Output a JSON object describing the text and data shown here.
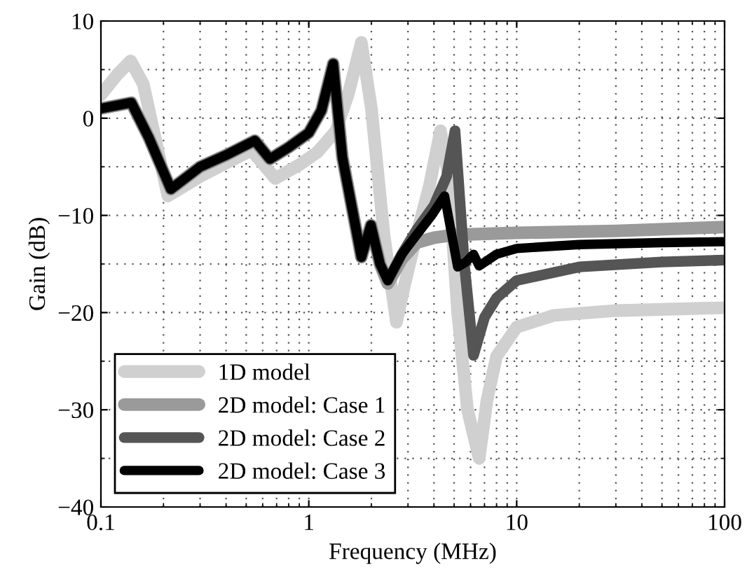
{
  "chart_data": {
    "type": "line",
    "xlabel": "Frequency (MHz)",
    "ylabel": "Gain (dB)",
    "log": "x",
    "xlim": [
      0.1,
      100
    ],
    "xticks": [
      0.1,
      1,
      10,
      100
    ],
    "ylim": [
      -40,
      10
    ],
    "yticks": [
      -40,
      -30,
      -20,
      -10,
      0,
      10
    ],
    "grid": true,
    "legend": "bottom left",
    "marker": "none",
    "line_style": "solid",
    "series": [
      {
        "name": "1D model",
        "color": "#d0d0d0",
        "x": [
          0.1,
          0.12,
          0.139,
          0.16,
          0.21,
          0.3,
          0.4,
          0.53,
          0.69,
          0.9,
          1.1,
          1.35,
          1.55,
          1.79,
          2.0,
          2.3,
          2.64,
          2.9,
          3.3,
          3.8,
          4.3,
          4.7,
          5.2,
          5.8,
          6.6,
          7.2,
          8,
          10,
          15,
          30,
          100
        ],
        "values": [
          2.4,
          4.5,
          5.9,
          3.5,
          -8,
          -6,
          -4.6,
          -3.3,
          -6.2,
          -4.8,
          -3.5,
          -1.3,
          2.5,
          7.8,
          1,
          -12,
          -21,
          -17,
          -12,
          -7,
          -1.3,
          -6,
          -20,
          -30,
          -35,
          -29,
          -24.5,
          -21.5,
          -20.3,
          -19.8,
          -19.5
        ]
      },
      {
        "name": "2D model: Case 1",
        "color": "#9a9a9a",
        "x": [
          0.1,
          0.14,
          0.17,
          0.217,
          0.3,
          0.4,
          0.55,
          0.65,
          0.8,
          1.0,
          1.15,
          1.31,
          1.45,
          1.79,
          1.99,
          2.2,
          2.4,
          2.8,
          3.3,
          4,
          5,
          10,
          30,
          100
        ],
        "values": [
          1,
          1.6,
          -2,
          -7.3,
          -5,
          -3.8,
          -2.3,
          -4.2,
          -3,
          -1.5,
          0.8,
          5.6,
          -4,
          -14.3,
          -11,
          -15,
          -17,
          -14.5,
          -12.8,
          -12.3,
          -12,
          -11.8,
          -11.6,
          -11.2
        ]
      },
      {
        "name": "2D model: Case 2",
        "color": "#555555",
        "x": [
          0.1,
          0.14,
          0.17,
          0.217,
          0.3,
          0.4,
          0.55,
          0.65,
          0.8,
          1.0,
          1.15,
          1.31,
          1.45,
          1.79,
          1.99,
          2.2,
          2.4,
          2.8,
          3.3,
          4,
          4.6,
          5.05,
          5.6,
          6.2,
          7,
          8,
          10,
          20,
          50,
          100
        ],
        "values": [
          1,
          1.6,
          -2,
          -7.3,
          -5,
          -3.8,
          -2.3,
          -4.2,
          -3,
          -1.5,
          0.8,
          5.6,
          -4,
          -14.3,
          -11,
          -15,
          -16.7,
          -14,
          -11.5,
          -9,
          -6,
          -1.3,
          -15,
          -24.4,
          -20.5,
          -18.5,
          -16.7,
          -15.3,
          -14.8,
          -14.6
        ]
      },
      {
        "name": "2D model: Case 3",
        "color": "#000000",
        "x": [
          0.1,
          0.14,
          0.17,
          0.217,
          0.3,
          0.4,
          0.55,
          0.65,
          0.8,
          1.0,
          1.15,
          1.31,
          1.45,
          1.79,
          1.99,
          2.2,
          2.4,
          2.8,
          3.3,
          3.9,
          4.5,
          5.2,
          5.7,
          6.2,
          6.6,
          8,
          10,
          20,
          50,
          100
        ],
        "values": [
          1,
          1.6,
          -2,
          -7.3,
          -5,
          -3.8,
          -2.3,
          -4.2,
          -3,
          -1.5,
          0.8,
          5.6,
          -4,
          -14.3,
          -11,
          -15,
          -16.7,
          -14,
          -12,
          -10,
          -8,
          -15.3,
          -14.8,
          -14,
          -15.2,
          -14,
          -13.4,
          -13,
          -12.8,
          -12.7
        ]
      }
    ]
  }
}
